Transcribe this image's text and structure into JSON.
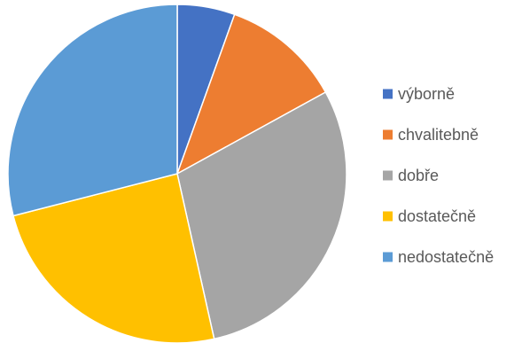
{
  "chart_data": {
    "type": "pie",
    "title": "",
    "categories": [
      "výborně",
      "chvalitebně",
      "dobře",
      "dostatečně",
      "nedostatečně"
    ],
    "values": [
      5.5,
      11.5,
      29.5,
      24.5,
      29
    ],
    "colors": [
      "#4472C4",
      "#ED7D31",
      "#A5A5A5",
      "#FFC000",
      "#5B9BD5"
    ],
    "start_angle_deg": 0,
    "direction": "clockwise",
    "legend_position": "right",
    "slice_border_color": "#ffffff"
  }
}
